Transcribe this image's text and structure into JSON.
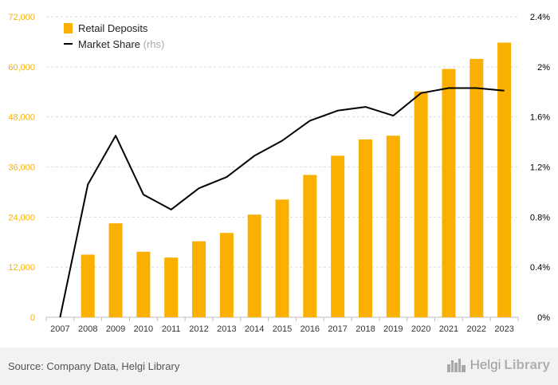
{
  "chart_data": {
    "type": "bar",
    "categories": [
      "2007",
      "2008",
      "2009",
      "2010",
      "2011",
      "2012",
      "2013",
      "2014",
      "2015",
      "2016",
      "2017",
      "2018",
      "2019",
      "2020",
      "2021",
      "2022",
      "2023"
    ],
    "series": [
      {
        "name": "Retail Deposits",
        "type": "bar",
        "axis": "left",
        "color": "#f9b000",
        "values": [
          0,
          15000,
          22500,
          15700,
          14300,
          18200,
          20200,
          24600,
          28200,
          34100,
          38700,
          42600,
          43500,
          54100,
          59500,
          61900,
          65800
        ]
      },
      {
        "name": "Market Share",
        "legend_suffix": "(rhs)",
        "type": "line",
        "axis": "right",
        "color": "#000000",
        "values": [
          0.0,
          1.06,
          1.45,
          0.98,
          0.86,
          1.03,
          1.12,
          1.29,
          1.41,
          1.57,
          1.65,
          1.68,
          1.61,
          1.79,
          1.83,
          1.83,
          1.81
        ]
      }
    ],
    "left_axis": {
      "ylim": [
        0,
        72000
      ],
      "ticks": [
        "0",
        "12,000",
        "24,000",
        "36,000",
        "48,000",
        "60,000",
        "72,000"
      ],
      "tick_values": [
        0,
        12000,
        24000,
        36000,
        48000,
        60000,
        72000
      ],
      "color": "#f9b000"
    },
    "right_axis": {
      "ylim": [
        0,
        2.4
      ],
      "ticks": [
        "0%",
        "0.4%",
        "0.8%",
        "1.2%",
        "1.6%",
        "2%",
        "2.4%"
      ],
      "tick_values": [
        0,
        0.4,
        0.8,
        1.2,
        1.6,
        2.0,
        2.4
      ]
    },
    "legend_position": "top-left",
    "grid": true
  },
  "footer": {
    "source": "Source: Company Data, Helgi Library",
    "logo_word_1": "Helgi",
    "logo_word_2": "Library",
    "logo_icon": "city-skyline-icon"
  }
}
